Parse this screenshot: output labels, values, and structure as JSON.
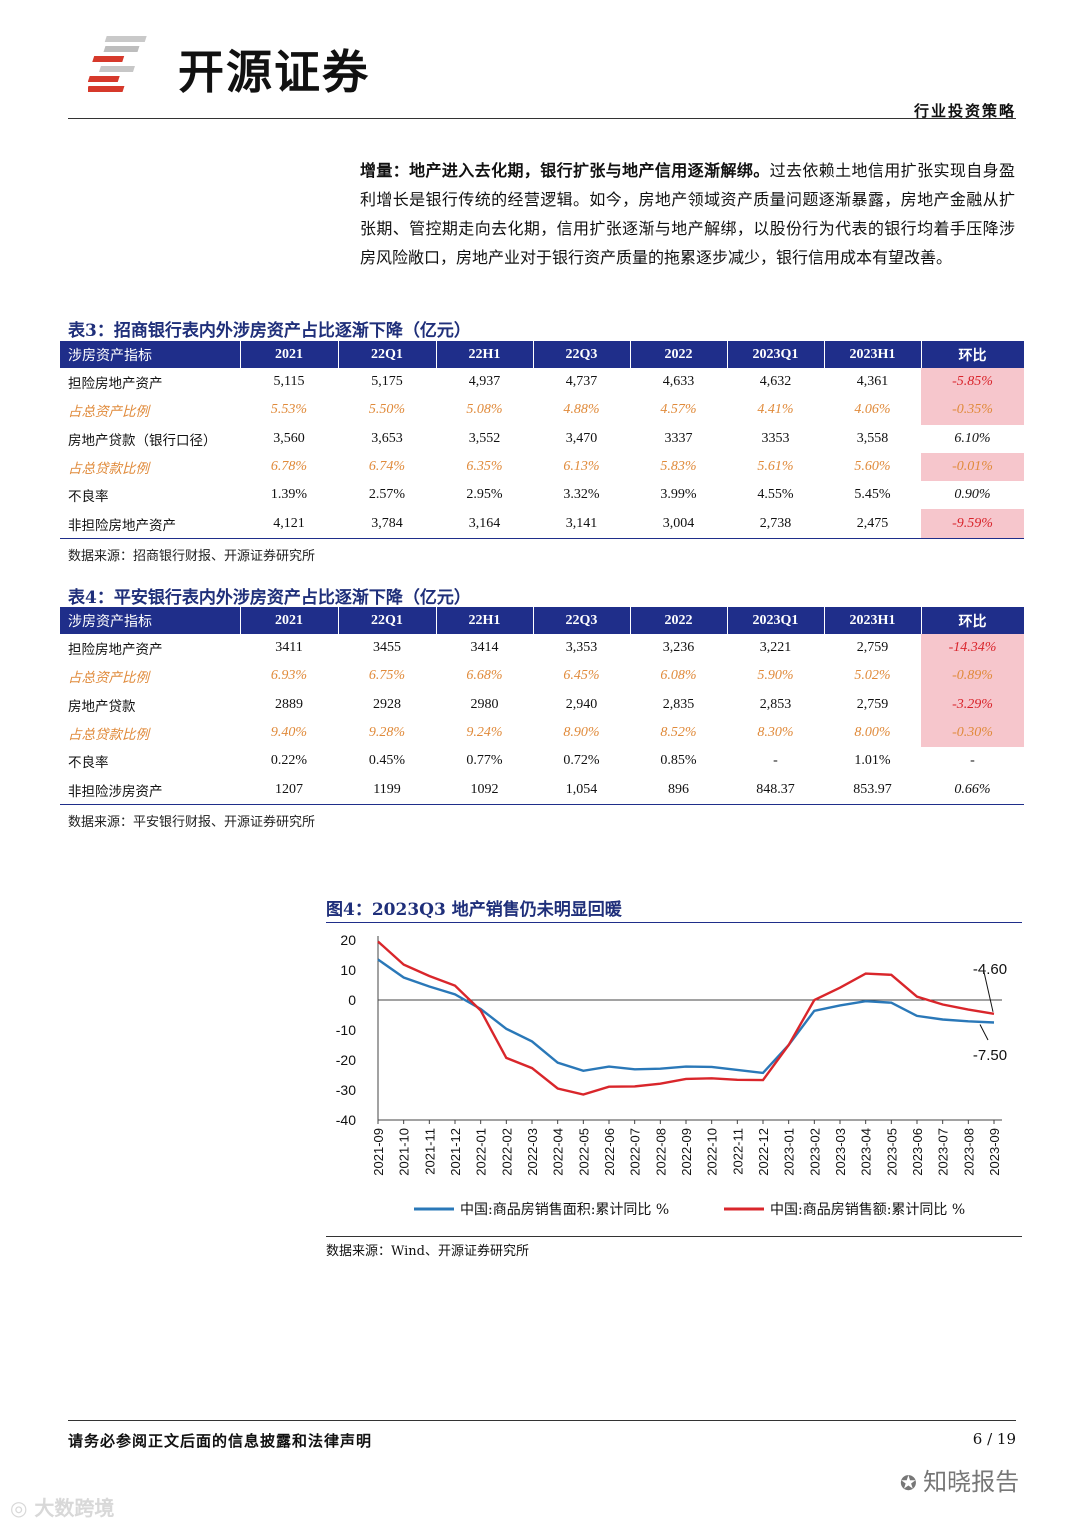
{
  "header": {
    "brand": "开源证券",
    "section": "行业投资策略"
  },
  "paragraph": {
    "lead": "增量：地产进入去化期，银行扩张与地产信用逐渐解绑。",
    "body": "过去依赖土地信用扩张实现自身盈利增长是银行传统的经营逻辑。如今，房地产领域资产质量问题逐渐暴露，房地产金融从扩张期、管控期走向去化期，信用扩张逐渐与地产解绑，以股份行为代表的银行均着手压降涉房风险敞口，房地产业对于银行资产质量的拖累逐步减少，银行信用成本有望改善。"
  },
  "table3": {
    "title": "表3：招商银行表内外涉房资产占比逐渐下降（亿元）",
    "headers": [
      "涉房资产指标",
      "2021",
      "22Q1",
      "22H1",
      "22Q3",
      "2022",
      "2023Q1",
      "2023H1",
      "环比"
    ],
    "rows": [
      [
        "担险房地产资产",
        "5,115",
        "5,175",
        "4,937",
        "4,737",
        "4,633",
        "4,632",
        "4,361",
        "-5.85%"
      ],
      [
        "占总资产比例",
        "5.53%",
        "5.50%",
        "5.08%",
        "4.88%",
        "4.57%",
        "4.41%",
        "4.06%",
        "-0.35%"
      ],
      [
        "房地产贷款（银行口径）",
        "3,560",
        "3,653",
        "3,552",
        "3,470",
        "3337",
        "3353",
        "3,558",
        "6.10%"
      ],
      [
        "占总贷款比例",
        "6.78%",
        "6.74%",
        "6.35%",
        "6.13%",
        "5.83%",
        "5.61%",
        "5.60%",
        "-0.01%"
      ],
      [
        "不良率",
        "1.39%",
        "2.57%",
        "2.95%",
        "3.32%",
        "3.99%",
        "4.55%",
        "5.45%",
        "0.90%"
      ],
      [
        "非担险房地产资产",
        "4,121",
        "3,784",
        "3,164",
        "3,141",
        "3,004",
        "2,738",
        "2,475",
        "-9.59%"
      ]
    ],
    "source": "数据来源：招商银行财报、开源证券研究所"
  },
  "table4": {
    "title": "表4：平安银行表内外涉房资产占比逐渐下降（亿元）",
    "headers": [
      "涉房资产指标",
      "2021",
      "22Q1",
      "22H1",
      "22Q3",
      "2022",
      "2023Q1",
      "2023H1",
      "环比"
    ],
    "rows": [
      [
        "担险房地产资产",
        "3411",
        "3455",
        "3414",
        "3,353",
        "3,236",
        "3,221",
        "2,759",
        "-14.34%"
      ],
      [
        "占总资产比例",
        "6.93%",
        "6.75%",
        "6.68%",
        "6.45%",
        "6.08%",
        "5.90%",
        "5.02%",
        "-0.89%"
      ],
      [
        "房地产贷款",
        "2889",
        "2928",
        "2980",
        "2,940",
        "2,835",
        "2,853",
        "2,759",
        "-3.29%"
      ],
      [
        "占总贷款比例",
        "9.40%",
        "9.28%",
        "9.24%",
        "8.90%",
        "8.52%",
        "8.30%",
        "8.00%",
        "-0.30%"
      ],
      [
        "不良率",
        "0.22%",
        "0.45%",
        "0.77%",
        "0.72%",
        "0.85%",
        "-",
        "1.01%",
        "-"
      ],
      [
        "非担险涉房资产",
        "1207",
        "1199",
        "1092",
        "1,054",
        "896",
        "848.37",
        "853.97",
        "0.66%"
      ]
    ],
    "source": "数据来源：平安银行财报、开源证券研究所"
  },
  "chart_data": {
    "type": "line",
    "title": "图4：2023Q3 地产销售仍未明显回暖",
    "x": [
      "2021-09",
      "2021-10",
      "2021-11",
      "2021-12",
      "2022-01",
      "2022-02",
      "2022-03",
      "2022-04",
      "2022-05",
      "2022-06",
      "2022-07",
      "2022-08",
      "2022-09",
      "2022-10",
      "2022-11",
      "2022-12",
      "2023-01",
      "2023-02",
      "2023-03",
      "2023-04",
      "2023-05",
      "2023-06",
      "2023-07",
      "2023-08",
      "2023-09"
    ],
    "ylim": [
      -40,
      20
    ],
    "yticks": [
      20,
      10,
      0,
      -10,
      -20,
      -30,
      -40
    ],
    "series": [
      {
        "name": "中国:商品房销售面积:累计同比 %",
        "color": "#2a78b8",
        "values": [
          13.5,
          7.5,
          4.5,
          1.9,
          -3,
          -9.6,
          -13.8,
          -20.9,
          -23.6,
          -22.2,
          -23.1,
          -22.9,
          -22.2,
          -22.3,
          -23.3,
          -24.3,
          -15,
          -3.6,
          -1.8,
          -0.4,
          -0.9,
          -5.3,
          -6.5,
          -7.1,
          -7.5
        ]
      },
      {
        "name": "中国:商品房销售额:累计同比 %",
        "color": "#d9262b",
        "values": [
          19.5,
          11.8,
          8.0,
          4.8,
          -3.5,
          -19.3,
          -22.7,
          -29.5,
          -31.5,
          -28.9,
          -28.8,
          -27.9,
          -26.3,
          -26.1,
          -26.6,
          -26.7,
          -15,
          0,
          4.1,
          8.8,
          8.4,
          1.1,
          -1.5,
          -3.2,
          -4.6
        ]
      }
    ],
    "annotations": [
      "-4.60",
      "-7.50"
    ],
    "source": "数据来源：Wind、开源证券研究所"
  },
  "footer": {
    "note": "请务必参阅正文后面的信息披露和法律声明",
    "page": "6 / 19",
    "watermark_right": "知晓报告",
    "watermark_left": "大数跨境"
  }
}
